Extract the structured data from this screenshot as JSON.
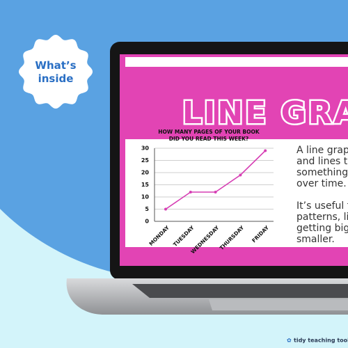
{
  "badge": "What’s inside",
  "slide": {
    "title": "LINE GRAPH",
    "text": [
      "A line grap",
      "and lines to",
      "something",
      "over time.",
      "It’s useful f",
      "patterns, li",
      "getting big",
      "smaller."
    ]
  },
  "chart_data": {
    "type": "line",
    "title": [
      "HOW MANY PAGES OF YOUR BOOK",
      "DID YOU READ THIS WEEK?"
    ],
    "categories": [
      "MONDAY",
      "TUESDAY",
      "WEDNESDAY",
      "THURSDAY",
      "FRIDAY"
    ],
    "values": [
      5,
      12,
      12,
      19,
      29
    ],
    "color": "#d63fb4",
    "ylim": [
      0,
      30
    ],
    "yticks": [
      0,
      5,
      10,
      15,
      20,
      25,
      30
    ],
    "grid": true
  },
  "brand": "tidy teaching tools"
}
